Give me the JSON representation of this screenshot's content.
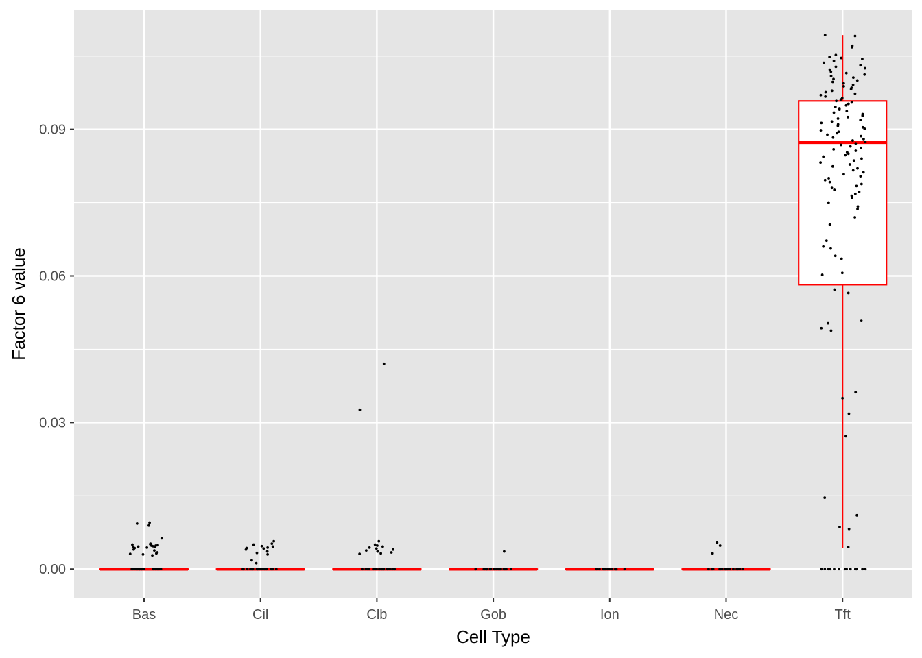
{
  "chart_data": {
    "type": "boxplot",
    "title": "",
    "xlabel": "Cell Type",
    "ylabel": "Factor 6 value",
    "categories": [
      "Bas",
      "Cil",
      "Clb",
      "Gob",
      "Ion",
      "Nec",
      "Tft"
    ],
    "ylim": [
      -0.006,
      0.1145
    ],
    "yticks": [
      0.0,
      0.03,
      0.06,
      0.09
    ],
    "ytick_labels": [
      "0.00",
      "0.03",
      "0.06",
      "0.09"
    ],
    "grid": true,
    "legend": "none",
    "colors": {
      "panel_background": "#e5e5e5",
      "grid": "#ffffff",
      "box": "#ff0000",
      "points": "#000000"
    },
    "boxes": [
      {
        "category": "Bas",
        "min": 0.0,
        "q1": 0.0,
        "median": 0.0,
        "q3": 0.0,
        "max": 0.0
      },
      {
        "category": "Cil",
        "min": 0.0,
        "q1": 0.0,
        "median": 0.0,
        "q3": 0.0,
        "max": 0.0
      },
      {
        "category": "Clb",
        "min": 0.0,
        "q1": 0.0,
        "median": 0.0,
        "q3": 0.0,
        "max": 0.0
      },
      {
        "category": "Gob",
        "min": 0.0,
        "q1": 0.0,
        "median": 0.0,
        "q3": 0.0,
        "max": 0.0
      },
      {
        "category": "Ion",
        "min": 0.0,
        "q1": 0.0,
        "median": 0.0,
        "q3": 0.0,
        "max": 0.0
      },
      {
        "category": "Nec",
        "min": 0.0,
        "q1": 0.0,
        "median": 0.0,
        "q3": 0.0,
        "max": 0.0
      },
      {
        "category": "Tft",
        "min": 0.0043,
        "q1": 0.0582,
        "median": 0.0873,
        "q3": 0.0958,
        "max": 0.1093
      }
    ],
    "points": [
      {
        "category": "Bas",
        "values": [
          0.0095,
          0.0093,
          0.0089,
          0.0063,
          0.0052,
          0.0051,
          0.005,
          0.0049,
          0.0048,
          0.0048,
          0.0047,
          0.0046,
          0.0045,
          0.0045,
          0.0044,
          0.0043,
          0.004,
          0.0038,
          0.0034,
          0.0032,
          0.0031,
          0.003,
          0.0028,
          0.0,
          0.0,
          0.0,
          0.0,
          0.0,
          0.0,
          0.0,
          0.0,
          0.0,
          0.0,
          0.0,
          0.0,
          0.0,
          0.0,
          0.0,
          0.0,
          0.0,
          0.0
        ]
      },
      {
        "category": "Cil",
        "values": [
          0.0057,
          0.0052,
          0.005,
          0.0047,
          0.0046,
          0.0044,
          0.0043,
          0.0042,
          0.004,
          0.0036,
          0.0033,
          0.003,
          0.0018,
          0.0012,
          0.0,
          0.0,
          0.0,
          0.0,
          0.0,
          0.0,
          0.0,
          0.0,
          0.0,
          0.0,
          0.0,
          0.0,
          0.0,
          0.0,
          0.0,
          0.0,
          0.0,
          0.0
        ]
      },
      {
        "category": "Clb",
        "values": [
          0.042,
          0.0326,
          0.0057,
          0.005,
          0.0048,
          0.0046,
          0.0044,
          0.0042,
          0.004,
          0.0038,
          0.0036,
          0.0034,
          0.0032,
          0.0031,
          0.0,
          0.0,
          0.0,
          0.0,
          0.0,
          0.0,
          0.0,
          0.0,
          0.0,
          0.0,
          0.0,
          0.0,
          0.0,
          0.0,
          0.0,
          0.0,
          0.0,
          0.0,
          0.0,
          0.0
        ]
      },
      {
        "category": "Gob",
        "values": [
          0.0036,
          0.0,
          0.0,
          0.0,
          0.0,
          0.0,
          0.0,
          0.0,
          0.0,
          0.0,
          0.0,
          0.0,
          0.0,
          0.0,
          0.0,
          0.0,
          0.0,
          0.0,
          0.0,
          0.0,
          0.0
        ]
      },
      {
        "category": "Ion",
        "values": [
          0.0,
          0.0,
          0.0,
          0.0,
          0.0,
          0.0,
          0.0,
          0.0,
          0.0,
          0.0,
          0.0,
          0.0,
          0.0,
          0.0
        ]
      },
      {
        "category": "Nec",
        "values": [
          0.0054,
          0.0048,
          0.0032,
          0.0,
          0.0,
          0.0,
          0.0,
          0.0,
          0.0,
          0.0,
          0.0,
          0.0,
          0.0,
          0.0,
          0.0,
          0.0,
          0.0,
          0.0,
          0.0,
          0.0,
          0.0
        ]
      },
      {
        "category": "Tft",
        "values": [
          0.1093,
          0.1091,
          0.1071,
          0.1068,
          0.1052,
          0.1048,
          0.1046,
          0.1044,
          0.104,
          0.1036,
          0.1031,
          0.1028,
          0.1025,
          0.1022,
          0.1018,
          0.1015,
          0.1012,
          0.1009,
          0.1006,
          0.1003,
          0.1,
          0.0997,
          0.0994,
          0.0991,
          0.0988,
          0.0985,
          0.0982,
          0.0979,
          0.0976,
          0.0973,
          0.097,
          0.0967,
          0.0964,
          0.0961,
          0.0958,
          0.0955,
          0.0952,
          0.0949,
          0.0946,
          0.0943,
          0.094,
          0.0937,
          0.0934,
          0.0931,
          0.0928,
          0.0925,
          0.0922,
          0.0919,
          0.0916,
          0.0913,
          0.091,
          0.0907,
          0.0904,
          0.0901,
          0.0898,
          0.0895,
          0.0892,
          0.0889,
          0.0886,
          0.0883,
          0.088,
          0.0877,
          0.0874,
          0.0871,
          0.0868,
          0.0865,
          0.0862,
          0.0859,
          0.0856,
          0.0853,
          0.085,
          0.0847,
          0.0844,
          0.084,
          0.0836,
          0.0832,
          0.0828,
          0.0824,
          0.082,
          0.0816,
          0.0812,
          0.0808,
          0.0804,
          0.08,
          0.0796,
          0.0792,
          0.0788,
          0.0784,
          0.078,
          0.0776,
          0.0772,
          0.0768,
          0.0764,
          0.076,
          0.075,
          0.0742,
          0.0737,
          0.072,
          0.0705,
          0.0672,
          0.066,
          0.0656,
          0.0641,
          0.0635,
          0.0606,
          0.0602,
          0.0572,
          0.0565,
          0.0508,
          0.0503,
          0.0493,
          0.0488,
          0.0362,
          0.035,
          0.0318,
          0.0272,
          0.0146,
          0.011,
          0.0086,
          0.0082,
          0.0045,
          0.0,
          0.0,
          0.0,
          0.0,
          0.0,
          0.0,
          0.0,
          0.0,
          0.0,
          0.0,
          0.0,
          0.0,
          0.0,
          0.0
        ]
      }
    ]
  }
}
